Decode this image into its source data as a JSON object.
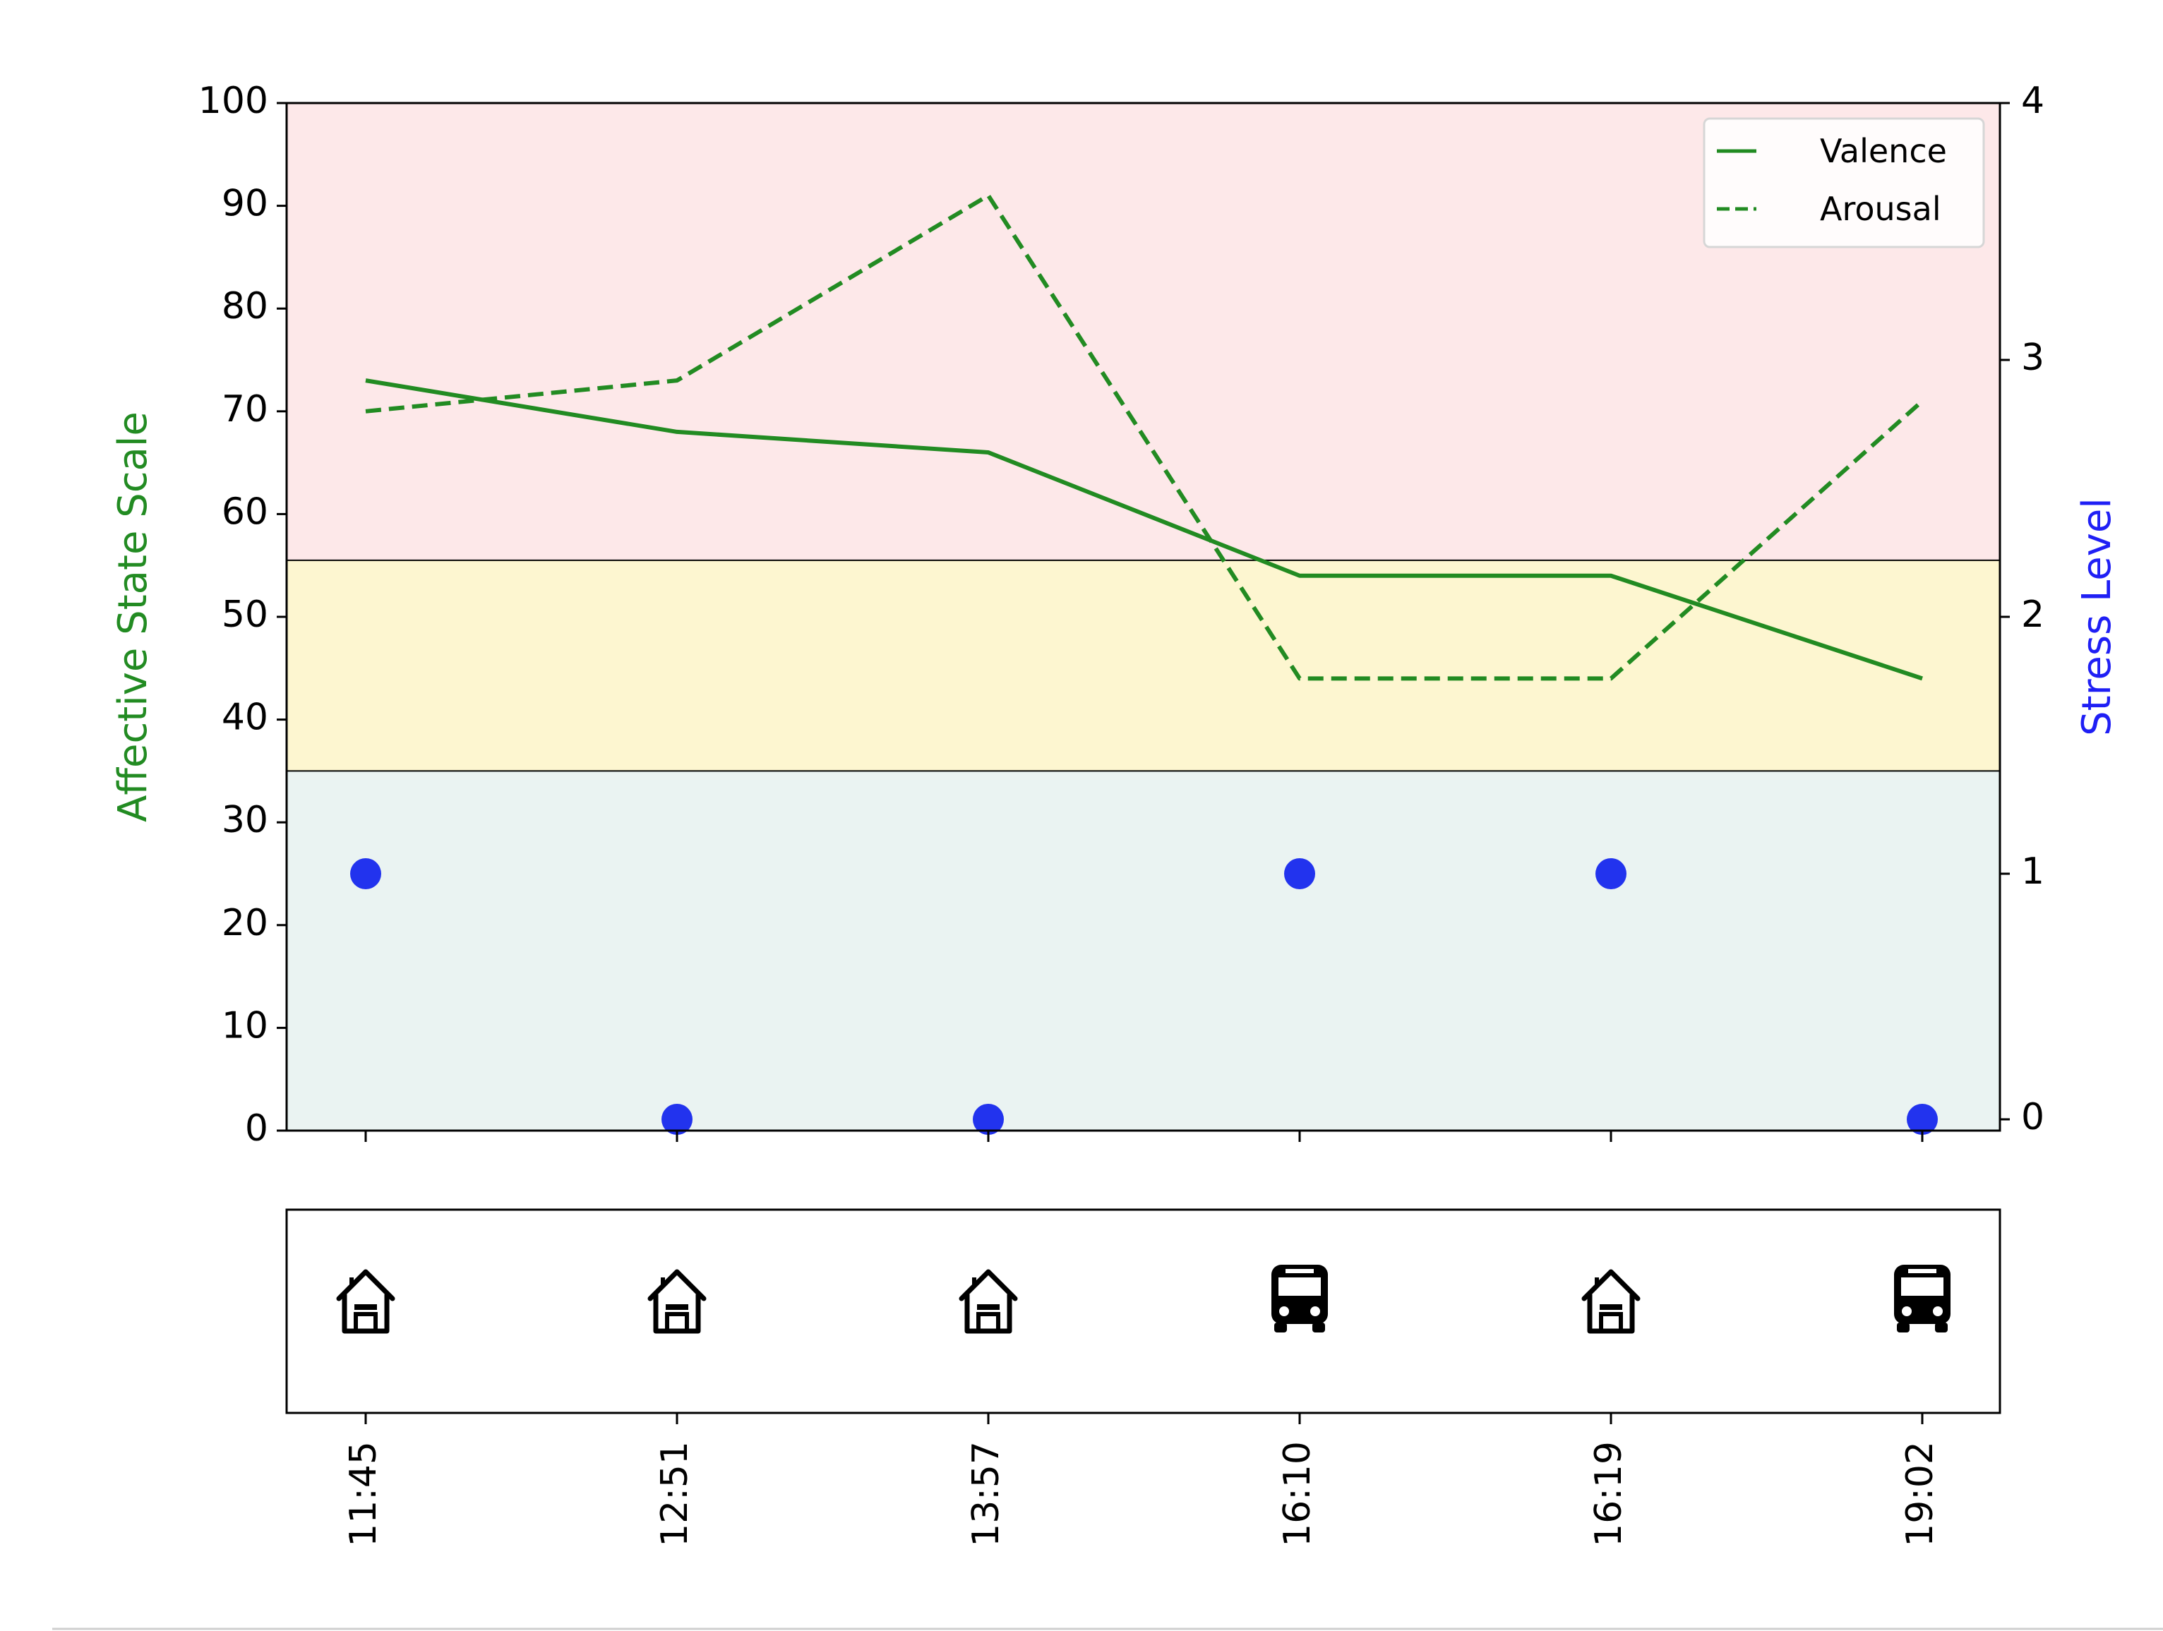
{
  "chart_data": {
    "type": "line",
    "categories": [
      "11:45",
      "12:51",
      "13:57",
      "16:10",
      "16:19",
      "19:02"
    ],
    "series": [
      {
        "name": "Valence",
        "style": "solid",
        "axis": "left",
        "values": [
          73,
          68,
          66,
          54,
          54,
          44
        ]
      },
      {
        "name": "Arousal",
        "style": "dashed",
        "axis": "left",
        "values": [
          70,
          73,
          91,
          44,
          44,
          71
        ]
      },
      {
        "name": "",
        "type": "scatter",
        "axis": "right",
        "values": [
          1,
          0,
          0,
          1,
          1,
          0
        ]
      }
    ],
    "activities": [
      {
        "time": "11:45",
        "icon": "house-icon"
      },
      {
        "time": "12:51",
        "icon": "house-icon"
      },
      {
        "time": "13:57",
        "icon": "house-icon"
      },
      {
        "time": "16:10",
        "icon": "bus-icon"
      },
      {
        "time": "16:19",
        "icon": "house-icon"
      },
      {
        "time": "19:02",
        "icon": "bus-icon"
      }
    ],
    "ylabel": "Affective State Scale",
    "y2label": "Stress Level",
    "ylim": [
      0,
      100
    ],
    "y2lim": [
      0,
      4
    ],
    "yticks": [
      0,
      10,
      20,
      30,
      40,
      50,
      60,
      70,
      80,
      90,
      100
    ],
    "y2ticks": [
      0,
      1,
      2,
      3,
      4
    ],
    "bands": [
      {
        "from": 0,
        "to": 35,
        "color": "#eaf3f2"
      },
      {
        "from": 35,
        "to": 55.5,
        "color": "#fdf6d0"
      },
      {
        "from": 55.5,
        "to": 100,
        "color": "#fde8e9"
      }
    ],
    "line_color": "#228b22",
    "scatter_color": "#2233ee",
    "ylabel_color": "#228b22",
    "y2label_color": "#1f1ff5",
    "legend": "top-right",
    "grid": false
  }
}
